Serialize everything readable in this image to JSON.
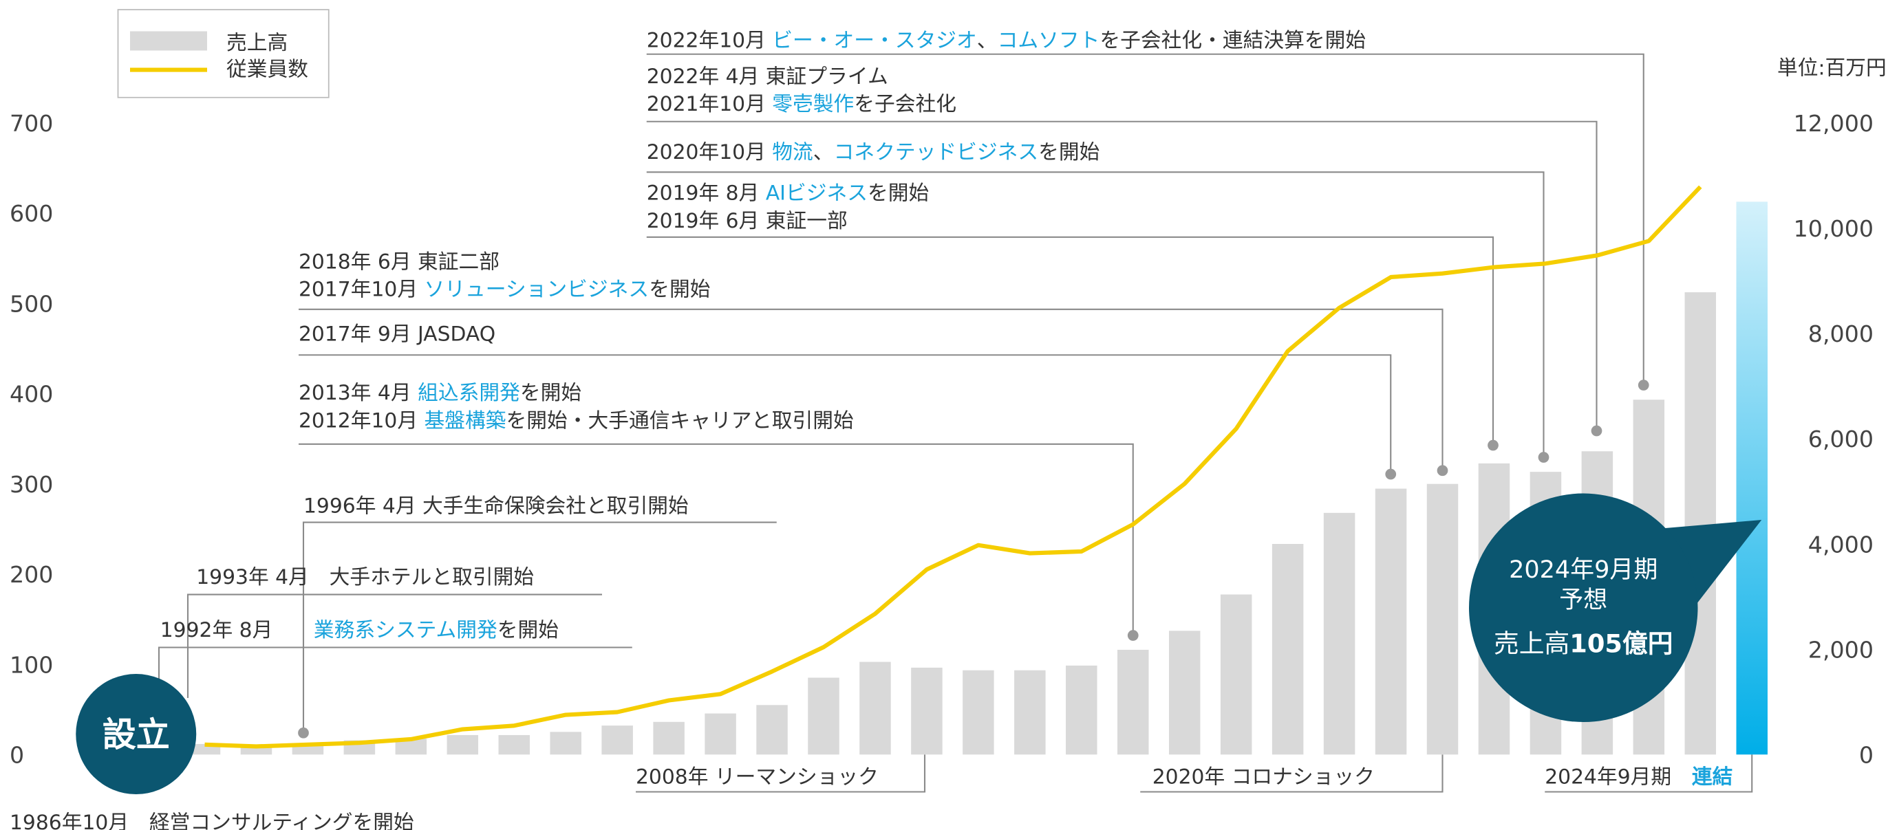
{
  "chart_data": {
    "type": "bar",
    "unit": "単位:百万円",
    "categories": [
      null,
      null,
      null,
      null,
      null,
      null,
      null,
      null,
      null,
      null,
      null,
      null,
      null,
      null,
      null,
      null,
      null,
      null,
      null,
      null,
      null,
      null,
      null,
      null,
      null,
      null,
      null,
      null,
      null,
      null,
      null
    ],
    "series": [
      {
        "name": "売上高",
        "color": "#d9d9d9",
        "highlight_color": "#00aee8",
        "axis": "y2",
        "values": [
          200,
          160,
          200,
          270,
          300,
          370,
          370,
          430,
          550,
          620,
          780,
          940,
          1460,
          1760,
          1650,
          1600,
          1600,
          1690,
          1990,
          2350,
          3040,
          4000,
          4590,
          5050,
          5140,
          5530,
          5370,
          5760,
          6740,
          8780,
          10500
        ]
      },
      {
        "name": "従業員数",
        "color": "#f5cd00",
        "values": [
          11,
          9,
          11,
          13,
          17,
          28,
          32,
          44,
          47,
          60,
          67,
          92,
          119,
          156,
          205,
          232,
          223,
          225,
          255,
          300,
          361,
          447,
          495,
          529,
          533,
          540,
          544,
          553,
          569,
          629,
          null
        ]
      }
    ],
    "ylim": [
      0,
      700
    ],
    "yticks": [
      0,
      100,
      200,
      300,
      400,
      500,
      600,
      700
    ],
    "y2lim": [
      0,
      12000
    ],
    "y2ticks": [
      0,
      {
        "value": 2000,
        "label": "2,000"
      },
      {
        "value": 4000,
        "label": "4,000"
      },
      {
        "value": 6000,
        "label": "6,000"
      },
      {
        "value": 8000,
        "label": "8,000"
      },
      {
        "value": 10000,
        "label": "10,000"
      },
      {
        "value": 12000,
        "label": "12,000"
      }
    ],
    "founding": "設立",
    "annotations": [
      {
        "parts": [
          {
            "text": "2022年10月 "
          },
          {
            "text": "ビー・オー・スタジオ",
            "color": "#1aa3dc"
          },
          {
            "text": "、"
          },
          {
            "text": "コムソフト",
            "color": "#1aa3dc"
          },
          {
            "text": "を子会社化・連結決算を開始"
          }
        ]
      },
      {
        "parts": [
          {
            "text": "2022年 4月 東証プライム"
          }
        ]
      },
      {
        "parts": [
          {
            "text": "2021年10月 "
          },
          {
            "text": "零壱製作",
            "color": "#1aa3dc"
          },
          {
            "text": "を子会社化"
          }
        ]
      },
      {
        "parts": [
          {
            "text": "2020年10月 "
          },
          {
            "text": "物流",
            "color": "#1aa3dc"
          },
          {
            "text": "、"
          },
          {
            "text": "コネクテッドビジネス",
            "color": "#1aa3dc"
          },
          {
            "text": "を開始"
          }
        ]
      },
      {
        "parts": [
          {
            "text": "2019年 8月 "
          },
          {
            "text": "AIビジネス",
            "color": "#1aa3dc"
          },
          {
            "text": "を開始"
          }
        ]
      },
      {
        "parts": [
          {
            "text": "2019年 6月 東証一部"
          }
        ]
      },
      {
        "parts": [
          {
            "text": "2018年 6月 東証二部"
          }
        ]
      },
      {
        "parts": [
          {
            "text": "2017年10月 "
          },
          {
            "text": "ソリューションビジネス",
            "color": "#1aa3dc"
          },
          {
            "text": "を開始"
          }
        ]
      },
      {
        "parts": [
          {
            "text": "2017年 9月 JASDAQ"
          }
        ]
      },
      {
        "parts": [
          {
            "text": "2013年 4月 "
          },
          {
            "text": "組込系開発",
            "color": "#1aa3dc"
          },
          {
            "text": "を開始"
          }
        ]
      },
      {
        "parts": [
          {
            "text": "2012年10月 "
          },
          {
            "text": "基盤構築",
            "color": "#1aa3dc"
          },
          {
            "text": "を開始・大手通信キャリアと取引開始"
          }
        ]
      },
      {
        "parts": [
          {
            "text": "1996年 4月 大手生命保険会社と取引開始"
          }
        ]
      },
      {
        "parts": [
          {
            "text": "1993年 4月　大手ホテルと取引開始"
          }
        ]
      },
      {
        "parts": [
          {
            "text": "1992年 8月　　"
          },
          {
            "text": "業務系システム開発",
            "color": "#1aa3dc"
          },
          {
            "text": "を開始"
          }
        ]
      },
      {
        "parts": [
          {
            "text": "1986年10月　経営コンサルティングを開始"
          }
        ]
      },
      {
        "parts": [
          {
            "text": "2008年 リーマンショック"
          }
        ]
      },
      {
        "parts": [
          {
            "text": "2020年 コロナショック"
          }
        ]
      },
      {
        "parts": [
          {
            "text": "2024年9月期　"
          },
          {
            "text": "連結",
            "color": "#1aa3dc",
            "bold": true
          }
        ]
      }
    ],
    "forecast": {
      "lines": [
        "2024年9月期",
        "予想"
      ],
      "parts": [
        {
          "text": "売上高"
        },
        {
          "text": "105億円",
          "bold": true
        }
      ]
    }
  }
}
